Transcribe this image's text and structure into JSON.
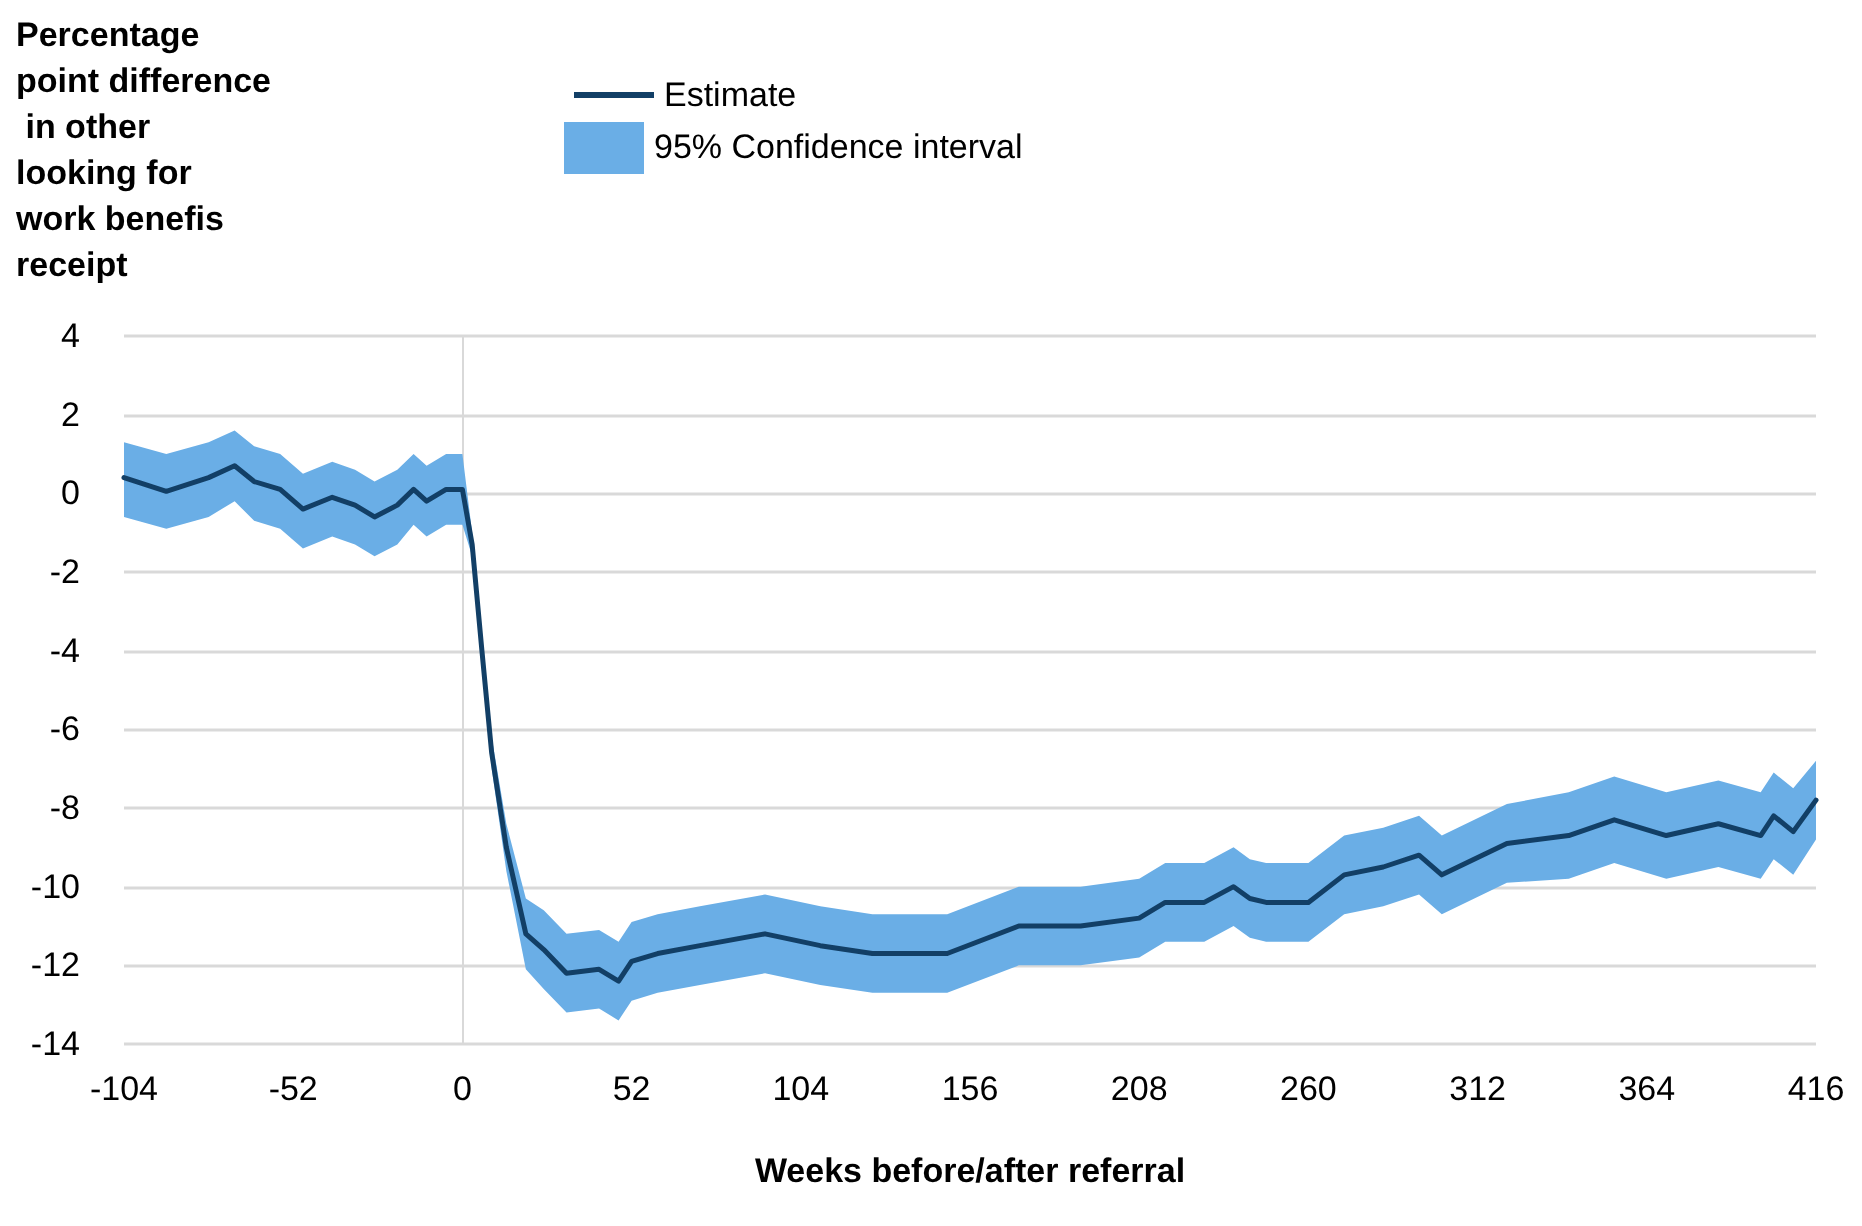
{
  "chart_data": {
    "type": "line",
    "xlabel": "Weeks before/after referral",
    "ylabel": "Percentage point difference in other looking for work benefis receipt",
    "annotations": [
      "95% Confidence interval"
    ],
    "x": [
      -104,
      -91,
      -78,
      -70,
      -64,
      -56,
      -49,
      -40,
      -33,
      -27,
      -20,
      -15,
      -11,
      -5,
      0,
      3,
      6,
      9,
      13.5,
      19.5,
      25,
      32,
      42,
      48,
      52,
      60,
      73,
      93,
      110,
      126,
      149,
      171,
      190,
      208,
      216,
      228,
      237,
      242,
      247,
      260,
      271,
      283,
      294,
      301,
      321,
      340,
      354,
      370,
      386,
      399,
      403,
      409,
      416
    ],
    "series": [
      {
        "name": "Estimate",
        "color": "#123f66",
        "values": [
          0.4,
          0.05,
          0.4,
          0.7,
          0.3,
          0.1,
          -0.4,
          -0.1,
          -0.3,
          -0.6,
          -0.3,
          0.1,
          -0.2,
          0.1,
          0.1,
          -1.3,
          -4,
          -6.6,
          -9,
          -11.2,
          -11.6,
          -12.2,
          -12.1,
          -12.4,
          -11.9,
          -11.7,
          -11.5,
          -11.2,
          -11.5,
          -11.7,
          -11.7,
          -11.0,
          -11.0,
          -10.8,
          -10.4,
          -10.4,
          -10.0,
          -10.3,
          -10.4,
          -10.4,
          -9.7,
          -9.5,
          -9.2,
          -9.7,
          -8.9,
          -8.7,
          -8.3,
          -8.7,
          -8.4,
          -8.7,
          -8.2,
          -8.6,
          -7.8
        ],
        "upper": [
          1.3,
          1.0,
          1.3,
          1.6,
          1.2,
          1.0,
          0.5,
          0.8,
          0.6,
          0.3,
          0.6,
          1.0,
          0.7,
          1.0,
          1.0,
          -1.0,
          -3.7,
          -6.2,
          -8.4,
          -10.3,
          -10.6,
          -11.2,
          -11.1,
          -11.4,
          -10.9,
          -10.7,
          -10.5,
          -10.2,
          -10.5,
          -10.7,
          -10.7,
          -10.0,
          -10.0,
          -9.8,
          -9.4,
          -9.4,
          -9.0,
          -9.3,
          -9.4,
          -9.4,
          -8.7,
          -8.5,
          -8.2,
          -8.7,
          -7.9,
          -7.6,
          -7.2,
          -7.6,
          -7.3,
          -7.6,
          -7.1,
          -7.5,
          -6.8
        ],
        "lower": [
          -0.6,
          -0.9,
          -0.6,
          -0.2,
          -0.7,
          -0.9,
          -1.4,
          -1.1,
          -1.3,
          -1.6,
          -1.3,
          -0.8,
          -1.1,
          -0.8,
          -0.8,
          -1.6,
          -4.3,
          -7.0,
          -9.6,
          -12.1,
          -12.6,
          -13.2,
          -13.1,
          -13.4,
          -12.9,
          -12.7,
          -12.5,
          -12.2,
          -12.5,
          -12.7,
          -12.7,
          -12.0,
          -12.0,
          -11.8,
          -11.4,
          -11.4,
          -11.0,
          -11.3,
          -11.4,
          -11.4,
          -10.7,
          -10.5,
          -10.2,
          -10.7,
          -9.9,
          -9.8,
          -9.4,
          -9.8,
          -9.5,
          -9.8,
          -9.3,
          -9.7,
          -8.8
        ]
      }
    ],
    "xlim": [
      -104,
      416
    ],
    "xticks": [
      -104,
      -52,
      0,
      52,
      104,
      156,
      208,
      260,
      312,
      364,
      416
    ],
    "ylim": [
      -14,
      4
    ],
    "yticks": [
      -14,
      -12,
      -10,
      -8,
      -6,
      -4,
      -2,
      0,
      2,
      4
    ],
    "grid": "y",
    "legend": "top",
    "marker": "none",
    "line_style": "solid"
  }
}
